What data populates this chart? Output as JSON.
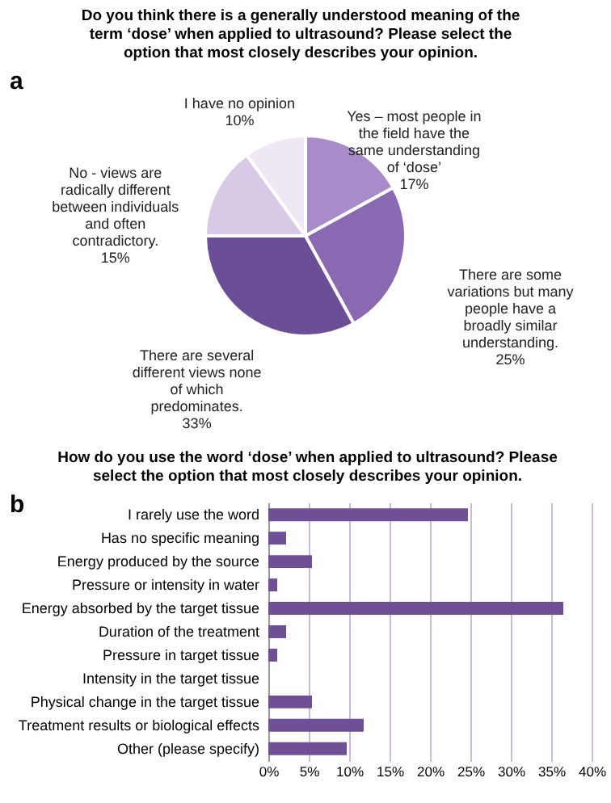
{
  "chart_data": [
    {
      "type": "pie",
      "title": "Do you think there is a generally understood meaning of the term ‘dose’ when applied to ultrasound? Please select the option that most closely describes your opinion.",
      "annotations": [
        "a"
      ],
      "categories": [
        "Yes – most people in the field have the same understanding of ‘dose’",
        "There are some variations but many people have a broadly similar understanding.",
        "There are several different views none of which predominates.",
        "No - views are radically different between individuals and often contradictory.",
        "I have no opinion"
      ],
      "values": [
        17,
        25,
        33,
        15,
        10
      ],
      "value_labels": [
        "17%",
        "25%",
        "33%",
        "15%",
        "10%"
      ],
      "colors": [
        "#a88bc8",
        "#8a68b2",
        "#6b4e96",
        "#d8cae6",
        "#efe8f4"
      ]
    },
    {
      "type": "bar",
      "orientation": "horizontal",
      "title": "How do you use the word ‘dose’ when applied to ultrasound? Please select the option that most closely describes your opinion.",
      "annotations": [
        "b"
      ],
      "categories": [
        "I rarely use the word",
        "Has no specific meaning",
        "Energy produced by the source",
        "Pressure or intensity in water",
        "Energy absorbed by the target tissue",
        "Duration of the treatment",
        "Pressure in target tissue",
        "Intensity in the target tissue",
        "Physical change in the target tissue",
        "Treatment results or biological effects",
        "Other (please specify)"
      ],
      "values": [
        24.7,
        2.2,
        5.4,
        1.1,
        36.5,
        2.2,
        1.1,
        0,
        5.4,
        11.8,
        9.7
      ],
      "color": "#6f5096",
      "xlim": [
        0,
        40
      ],
      "xticks": [
        {
          "value": 0,
          "label": "0%"
        },
        {
          "value": 5,
          "label": "5%"
        },
        {
          "value": 10,
          "label": "10%"
        },
        {
          "value": 15,
          "label": "15%"
        },
        {
          "value": 20,
          "label": "20%"
        },
        {
          "value": 25,
          "label": "25%"
        },
        {
          "value": 30,
          "label": "30%"
        },
        {
          "value": 35,
          "label": "35%"
        },
        {
          "value": 40,
          "label": "40%"
        }
      ],
      "grid": "x"
    }
  ]
}
